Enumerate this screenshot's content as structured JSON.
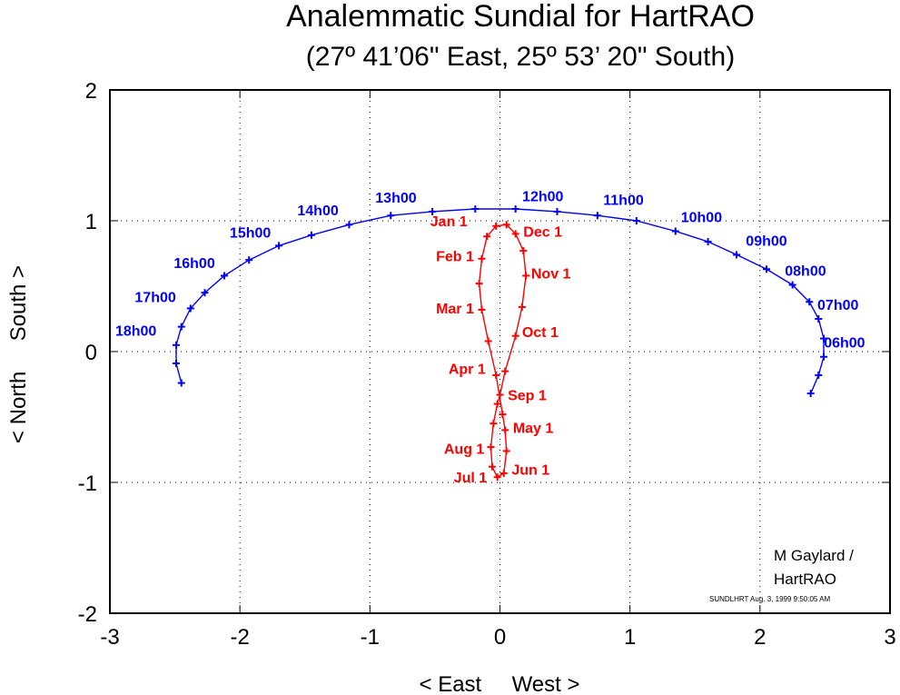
{
  "chart_data": {
    "type": "line",
    "title": "Analemmatic Sundial for HartRAO",
    "subtitle": "(27º 41’06\" East, 25º 53’ 20\" South)",
    "xlabel": "< East     West >",
    "ylabel": "< North     South >",
    "xlim": [
      -3,
      3
    ],
    "ylim": [
      -2,
      2
    ],
    "x_ticks": [
      -3,
      -2,
      -1,
      0,
      1,
      2,
      3
    ],
    "y_ticks": [
      -2,
      -1,
      0,
      1,
      2
    ],
    "x_tick_labels": [
      "-3",
      "-2",
      "-1",
      "0",
      "1",
      "2",
      "3"
    ],
    "y_tick_labels": [
      "-2",
      "-1",
      "0",
      "1",
      "2"
    ],
    "grid": true,
    "colors": {
      "hours": "#0000ff",
      "dates": "#ff0000",
      "axes": "#000000",
      "grid": "#000000"
    },
    "series": [
      {
        "color": "#0000ff",
        "points": [
          [
            2.39,
            -0.32
          ],
          [
            2.45,
            -0.18
          ],
          [
            2.49,
            -0.04
          ],
          [
            2.49,
            0.1
          ],
          [
            2.45,
            0.25
          ],
          [
            2.38,
            0.38
          ],
          [
            2.25,
            0.51
          ],
          [
            2.05,
            0.63
          ],
          [
            1.82,
            0.74
          ],
          [
            1.6,
            0.84
          ],
          [
            1.35,
            0.92
          ],
          [
            1.05,
            1.0
          ],
          [
            0.75,
            1.04
          ],
          [
            0.44,
            1.07
          ],
          [
            0.12,
            1.09
          ],
          [
            -0.19,
            1.09
          ],
          [
            -0.52,
            1.07
          ],
          [
            -0.84,
            1.04
          ],
          [
            -1.16,
            0.97
          ],
          [
            -1.45,
            0.89
          ],
          [
            -1.7,
            0.81
          ],
          [
            -1.93,
            0.7
          ],
          [
            -2.12,
            0.58
          ],
          [
            -2.27,
            0.45
          ],
          [
            -2.38,
            0.33
          ],
          [
            -2.45,
            0.19
          ],
          [
            -2.49,
            0.05
          ],
          [
            -2.49,
            -0.09
          ],
          [
            -2.45,
            -0.24
          ]
        ]
      },
      {
        "color": "#ff0000",
        "closed": true,
        "points": [
          [
            0.05,
            0.97
          ],
          [
            0.12,
            0.9
          ],
          [
            0.18,
            0.77
          ],
          [
            0.2,
            0.58
          ],
          [
            0.17,
            0.34
          ],
          [
            0.12,
            0.12
          ],
          [
            0.04,
            -0.15
          ],
          [
            0.0,
            -0.33
          ],
          [
            -0.02,
            -0.4
          ],
          [
            -0.05,
            -0.55
          ],
          [
            -0.07,
            -0.73
          ],
          [
            -0.06,
            -0.88
          ],
          [
            -0.02,
            -0.96
          ],
          [
            0.03,
            -0.93
          ],
          [
            0.05,
            -0.76
          ],
          [
            0.04,
            -0.6
          ],
          [
            0.02,
            -0.48
          ],
          [
            -0.03,
            -0.18
          ],
          [
            -0.09,
            0.08
          ],
          [
            -0.14,
            0.32
          ],
          [
            -0.16,
            0.52
          ],
          [
            -0.14,
            0.71
          ],
          [
            -0.1,
            0.88
          ],
          [
            -0.03,
            0.96
          ],
          [
            0.05,
            0.97
          ]
        ]
      }
    ],
    "hour_labels": [
      {
        "text": "06h00",
        "x": 2.65,
        "y": 0.03
      },
      {
        "text": "07h00",
        "x": 2.6,
        "y": 0.32
      },
      {
        "text": "08h00",
        "x": 2.35,
        "y": 0.58
      },
      {
        "text": "09h00",
        "x": 2.05,
        "y": 0.81
      },
      {
        "text": "10h00",
        "x": 1.55,
        "y": 0.99
      },
      {
        "text": "11h00",
        "x": 0.95,
        "y": 1.12
      },
      {
        "text": "12h00",
        "x": 0.33,
        "y": 1.15
      },
      {
        "text": "13h00",
        "x": -0.8,
        "y": 1.14
      },
      {
        "text": "14h00",
        "x": -1.4,
        "y": 1.04
      },
      {
        "text": "15h00",
        "x": -1.92,
        "y": 0.87
      },
      {
        "text": "16h00",
        "x": -2.35,
        "y": 0.64
      },
      {
        "text": "17h00",
        "x": -2.65,
        "y": 0.38
      },
      {
        "text": "18h00",
        "x": -2.8,
        "y": 0.12
      }
    ],
    "date_labels": [
      {
        "text": "Jan 1",
        "x": -0.25,
        "y": 0.96,
        "anchor": "end"
      },
      {
        "text": "Dec 1",
        "x": 0.18,
        "y": 0.88,
        "anchor": "start"
      },
      {
        "text": "Feb 1",
        "x": -0.2,
        "y": 0.69,
        "anchor": "end"
      },
      {
        "text": "Nov 1",
        "x": 0.24,
        "y": 0.56,
        "anchor": "start"
      },
      {
        "text": "Mar 1",
        "x": -0.2,
        "y": 0.29,
        "anchor": "end"
      },
      {
        "text": "Oct 1",
        "x": 0.17,
        "y": 0.11,
        "anchor": "start"
      },
      {
        "text": "Apr 1",
        "x": -0.11,
        "y": -0.17,
        "anchor": "end"
      },
      {
        "text": "Sep 1",
        "x": 0.06,
        "y": -0.37,
        "anchor": "start"
      },
      {
        "text": "May 1",
        "x": 0.1,
        "y": -0.62,
        "anchor": "start"
      },
      {
        "text": "Aug 1",
        "x": -0.12,
        "y": -0.78,
        "anchor": "end"
      },
      {
        "text": "Jun 1",
        "x": 0.09,
        "y": -0.94,
        "anchor": "start"
      },
      {
        "text": "Jul 1",
        "x": -0.1,
        "y": -1.0,
        "anchor": "end"
      }
    ]
  },
  "credit": {
    "line1": "M Gaylard /",
    "line2": "HartRAO"
  },
  "stamp": "SUNDLHRT  Aug. 3, 1999  9:50:05 AM"
}
